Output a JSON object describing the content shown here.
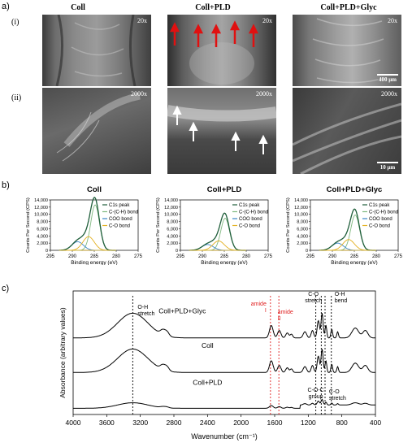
{
  "panels": {
    "a": "a)",
    "b": "b)",
    "c": "c)"
  },
  "sem": {
    "columns": [
      "Coll",
      "Coll+PLD",
      "Coll+PLD+Glyc"
    ],
    "rows": [
      {
        "label": "(i)",
        "mag": "20x"
      },
      {
        "label": "(ii)",
        "mag": "2000x"
      }
    ],
    "scale_top": "400 μm",
    "scale_bottom": "10 μm"
  },
  "chart_data": [
    {
      "type": "line",
      "title": "Coll",
      "xlabel": "Binding energy (eV)",
      "ylabel": "Counts Per Second (CPS)",
      "xlim": [
        295,
        275
      ],
      "ylim": [
        0,
        14000
      ],
      "xticks": [
        295,
        290,
        285,
        280,
        275
      ],
      "yticks": [
        0,
        2000,
        4000,
        6000,
        8000,
        10000,
        12000,
        14000
      ],
      "ytick_labels": [
        "0",
        "2,000",
        "4,000",
        "6,000",
        "8,000",
        "10,000",
        "12,000",
        "14,000"
      ],
      "legend": [
        "C1s peak",
        "C-(C-H) bond",
        "COO bond",
        "C-O bond"
      ],
      "colors": {
        "C1s peak": "#1f5e3a",
        "C-(C-H) bond": "#7fb87f",
        "COO bond": "#3a86c8",
        "C-O bond": "#e3b020"
      },
      "components": [
        {
          "name": "C-(C-H) bond",
          "center": 284.8,
          "height": 12600,
          "width": 1.0
        },
        {
          "name": "COO bond",
          "center": 288.8,
          "height": 2400,
          "width": 1.3
        },
        {
          "name": "C-O bond",
          "center": 286.3,
          "height": 3800,
          "width": 1.3
        }
      ]
    },
    {
      "type": "line",
      "title": "Coll+PLD",
      "xlabel": "Binding energy (eV)",
      "ylabel": "Counts Per Second (CPS)",
      "xlim": [
        295,
        275
      ],
      "ylim": [
        0,
        14000
      ],
      "xticks": [
        295,
        290,
        285,
        280,
        275
      ],
      "yticks": [
        0,
        2000,
        4000,
        6000,
        8000,
        10000,
        12000,
        14000
      ],
      "ytick_labels": [
        "0",
        "2,000",
        "4,000",
        "6,000",
        "8,000",
        "10,000",
        "12,000",
        "14,000"
      ],
      "legend": [
        "C1s peak",
        "C-(C-H) bond",
        "COO bond",
        "C-O bond"
      ],
      "colors": {
        "C1s peak": "#1f5e3a",
        "C-(C-H) bond": "#7fb87f",
        "COO bond": "#3a86c8",
        "C-O bond": "#e3b020"
      },
      "components": [
        {
          "name": "C-(C-H) bond",
          "center": 284.8,
          "height": 8900,
          "width": 1.0
        },
        {
          "name": "COO bond",
          "center": 288.8,
          "height": 1600,
          "width": 1.3
        },
        {
          "name": "C-O bond",
          "center": 286.3,
          "height": 2600,
          "width": 1.3
        }
      ]
    },
    {
      "type": "line",
      "title": "Coll+PLD+Glyc",
      "xlabel": "Binding energy (eV)",
      "ylabel": "Counts Per Second (CPS)",
      "xlim": [
        295,
        275
      ],
      "ylim": [
        0,
        14000
      ],
      "xticks": [
        295,
        290,
        285,
        280,
        275
      ],
      "yticks": [
        0,
        2000,
        4000,
        6000,
        8000,
        10000,
        12000,
        14000
      ],
      "ytick_labels": [
        "0",
        "2,000",
        "4,000",
        "6,000",
        "8,000",
        "10,000",
        "12,000",
        "14,000"
      ],
      "legend": [
        "C1s peak",
        "C-(C-H) bond",
        "COO bond",
        "C-O bond"
      ],
      "colors": {
        "C1s peak": "#1f5e3a",
        "C-(C-H) bond": "#7fb87f",
        "COO bond": "#3a86c8",
        "C-O bond": "#e3b020"
      },
      "components": [
        {
          "name": "C-(C-H) bond",
          "center": 284.8,
          "height": 9800,
          "width": 1.0
        },
        {
          "name": "COO bond",
          "center": 288.8,
          "height": 2000,
          "width": 1.3
        },
        {
          "name": "C-O bond",
          "center": 286.3,
          "height": 3000,
          "width": 1.3
        }
      ]
    },
    {
      "type": "line",
      "title": "",
      "xlabel": "Wavenumber (cm⁻¹)",
      "ylabel": "Absorbance (arbitrary values)",
      "xlim": [
        4000,
        400
      ],
      "xticks": [
        4000,
        3600,
        3200,
        2800,
        2400,
        2000,
        1600,
        1200,
        800,
        400
      ],
      "series": [
        {
          "name": "Coll+PLD+Glyc",
          "offset": 0.62,
          "scale": 1.0
        },
        {
          "name": "Coll",
          "offset": 0.34,
          "scale": 0.95
        },
        {
          "name": "Coll+PLD",
          "offset": 0.05,
          "scale": 0.45
        }
      ],
      "annotations": [
        {
          "text": "O-H stretch",
          "x": 3290,
          "color": "#000000"
        },
        {
          "text": "amide I",
          "x": 1640,
          "color": "#e02020"
        },
        {
          "text": "amide II",
          "x": 1545,
          "color": "#e02020"
        },
        {
          "text": "C-O stretch",
          "x": 1080,
          "color": "#000000"
        },
        {
          "text": "O-H bend",
          "x": 925,
          "color": "#000000"
        },
        {
          "text": "C-O-C group",
          "x": 1110,
          "color": "#000000"
        },
        {
          "text": "C-O stretch",
          "x": 1030,
          "color": "#000000"
        }
      ],
      "marker_lines": [
        {
          "x": 3290,
          "color": "#000000"
        },
        {
          "x": 1650,
          "color": "#e02020"
        },
        {
          "x": 1550,
          "color": "#e02020"
        },
        {
          "x": 1110,
          "color": "#000000"
        },
        {
          "x": 1045,
          "color": "#000000"
        },
        {
          "x": 1000,
          "color": "#000000"
        },
        {
          "x": 925,
          "color": "#000000"
        }
      ]
    }
  ]
}
